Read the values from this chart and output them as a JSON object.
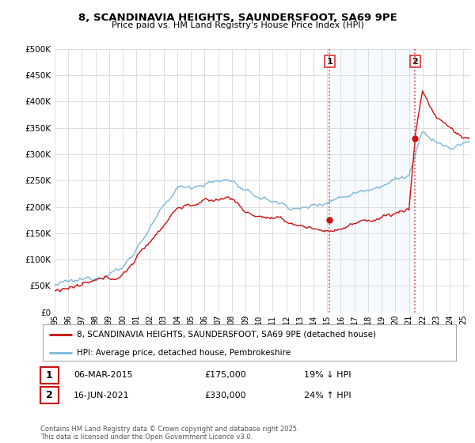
{
  "title": "8, SCANDINAVIA HEIGHTS, SAUNDERSFOOT, SA69 9PE",
  "subtitle": "Price paid vs. HM Land Registry's House Price Index (HPI)",
  "ylabel_ticks": [
    "£0",
    "£50K",
    "£100K",
    "£150K",
    "£200K",
    "£250K",
    "£300K",
    "£350K",
    "£400K",
    "£450K",
    "£500K"
  ],
  "ytick_values": [
    0,
    50000,
    100000,
    150000,
    200000,
    250000,
    300000,
    350000,
    400000,
    450000,
    500000
  ],
  "xlim_start": 1995.5,
  "xlim_end": 2025.5,
  "ylim": [
    0,
    500000
  ],
  "hpi_color": "#7db8d8",
  "price_color": "#cc1111",
  "vline_color": "#dd3333",
  "shade_color": "#ddeeff",
  "marker1_x": 2015.17,
  "marker1_y": 175000,
  "marker2_x": 2021.46,
  "marker2_y": 330000,
  "legend_line1": "8, SCANDINAVIA HEIGHTS, SAUNDERSFOOT, SA69 9PE (detached house)",
  "legend_line2": "HPI: Average price, detached house, Pembrokeshire",
  "table_row1": [
    "1",
    "06-MAR-2015",
    "£175,000",
    "19% ↓ HPI"
  ],
  "table_row2": [
    "2",
    "16-JUN-2021",
    "£330,000",
    "24% ↑ HPI"
  ],
  "footer": "Contains HM Land Registry data © Crown copyright and database right 2025.\nThis data is licensed under the Open Government Licence v3.0.",
  "background_color": "#ffffff",
  "grid_color": "#dddddd"
}
